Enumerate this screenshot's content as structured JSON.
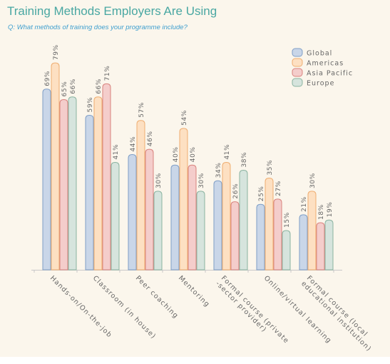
{
  "title": "Training Methods Employers Are Using",
  "subtitle": "Q: What methods of training does your programme include?",
  "colors": {
    "Global": {
      "fill": "#c9d6e8",
      "stroke": "#7f9ec6"
    },
    "Americas": {
      "fill": "#fde0c2",
      "stroke": "#efad70"
    },
    "Asia Pacific": {
      "fill": "#f4cdcb",
      "stroke": "#d9827d"
    },
    "Europe": {
      "fill": "#d6e4dd",
      "stroke": "#8ab3a0"
    }
  },
  "chart_data": {
    "type": "bar",
    "title": "Training Methods Employers Are Using",
    "subtitle": "Q: What methods of training does your programme include?",
    "categories": [
      [
        "Hands-on/On-the-job"
      ],
      [
        "Classroom (in house)"
      ],
      [
        "Peer coaching"
      ],
      [
        "Mentoring"
      ],
      [
        "Formal course (private",
        "-sector provider)"
      ],
      [
        "Online/virtual learning"
      ],
      [
        "Formal course (local",
        "educational institution)"
      ]
    ],
    "series": [
      {
        "name": "Global",
        "values": [
          69,
          59,
          44,
          40,
          34,
          25,
          21
        ]
      },
      {
        "name": "Americas",
        "values": [
          79,
          66,
          57,
          54,
          41,
          35,
          30
        ]
      },
      {
        "name": "Asia Pacific",
        "values": [
          65,
          71,
          46,
          40,
          26,
          27,
          18
        ]
      },
      {
        "name": "Europe",
        "values": [
          66,
          41,
          30,
          30,
          38,
          15,
          19
        ]
      }
    ],
    "value_suffix": "%",
    "ylim": [
      0,
      85
    ],
    "legend_position": "top-right",
    "grid": false
  }
}
